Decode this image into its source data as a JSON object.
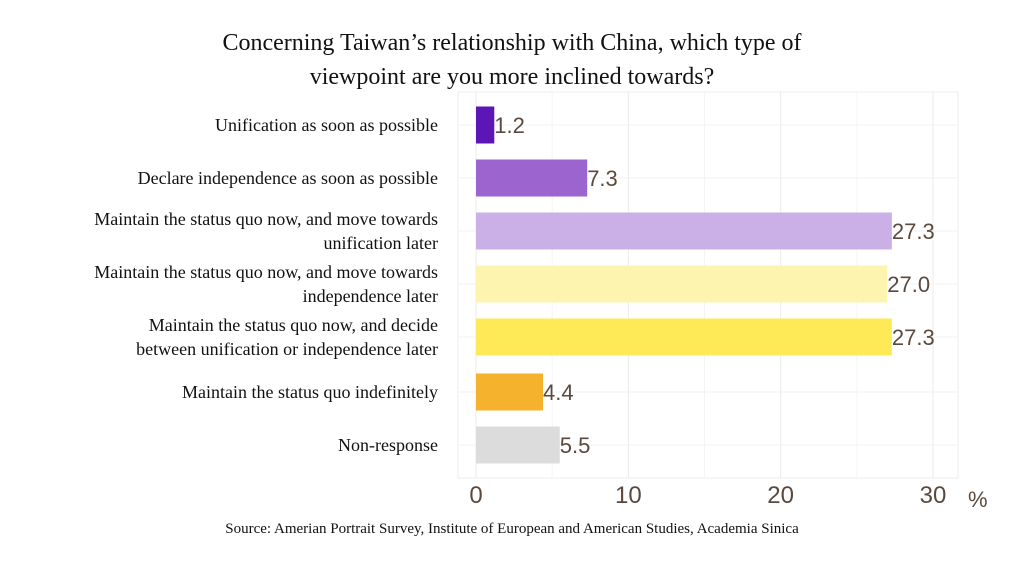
{
  "title_lines": [
    "Concerning Taiwan’s relationship with China, which type of",
    "viewpoint are you more inclined towards?"
  ],
  "source": "Source: Amerian Portrait Survey, Institute of European and American Studies, Academia Sinica",
  "chart_data": {
    "type": "bar",
    "orientation": "horizontal",
    "title": "Concerning Taiwan’s relationship with China, which type of viewpoint are you more inclined towards?",
    "categories": [
      [
        "Unification as soon as possible"
      ],
      [
        "Declare independence as soon as possible"
      ],
      [
        "Maintain the status quo now, and move towards",
        "unification later"
      ],
      [
        "Maintain the status quo now, and move towards",
        "independence later"
      ],
      [
        "Maintain the status quo now, and decide",
        "between unification or independence later"
      ],
      [
        "Maintain the status quo indefinitely"
      ],
      [
        "Non-response"
      ]
    ],
    "values": [
      1.2,
      7.3,
      27.3,
      27.0,
      27.3,
      4.4,
      5.5
    ],
    "value_labels": [
      "1.2",
      "7.3",
      "27.3",
      "27.0",
      "27.3",
      "4.4",
      "5.5"
    ],
    "colors": [
      "#5b16b5",
      "#9b64cf",
      "#cbb0e8",
      "#fdf4b0",
      "#feea57",
      "#f5b22c",
      "#dcdcdc"
    ],
    "xlim": [
      -1,
      31.5
    ],
    "xticks": [
      0,
      10,
      20,
      30
    ],
    "xtick_labels": [
      "0",
      "10",
      "20",
      "30"
    ],
    "unit": "%",
    "grid": true
  }
}
